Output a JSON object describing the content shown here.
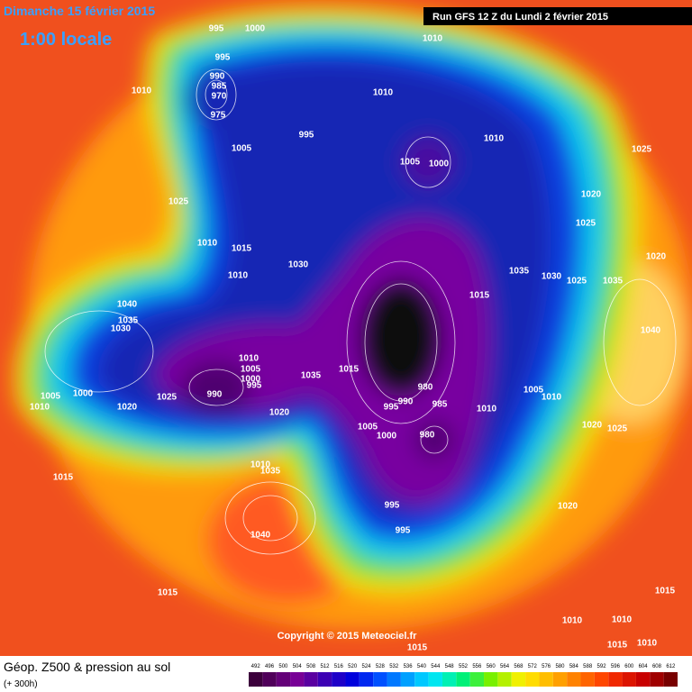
{
  "header": {
    "date": "Dimanche 15 février 2015",
    "time": "1:00 locale",
    "run": "Run GFS 12 Z du Lundi 2 février 2015"
  },
  "map": {
    "copyright": "Copyright © 2015 Meteociel.fr",
    "isobar_labels": [
      995,
      1000,
      1010,
      995,
      990,
      985,
      970,
      975,
      1010,
      1010,
      1010,
      995,
      1005,
      1005,
      1000,
      1025,
      1025,
      1020,
      1025,
      1010,
      1015,
      1030,
      1035,
      1030,
      1025,
      1035,
      1020,
      1010,
      1015,
      1040,
      1035,
      1030,
      1040,
      1010,
      1005,
      1000,
      995,
      990,
      1035,
      1015,
      980,
      1005,
      1010,
      1005,
      1000,
      1025,
      1010,
      1020,
      1020,
      995,
      990,
      985,
      1010,
      1005,
      980,
      1000,
      1020,
      1025,
      1015,
      1010,
      1035,
      995,
      1020,
      995,
      1040,
      1015,
      1015,
      1010,
      1010,
      1015,
      1010,
      1015
    ]
  },
  "footer": {
    "title": "Géop. Z500 & pression au sol",
    "subtitle": "(+ 300h)",
    "scale": {
      "values": [
        492,
        496,
        500,
        504,
        508,
        512,
        516,
        520,
        524,
        528,
        532,
        536,
        540,
        544,
        548,
        552,
        556,
        560,
        564,
        568,
        572,
        576,
        580,
        584,
        588,
        592,
        596,
        600,
        604,
        608,
        612
      ],
      "colors": [
        "#3c003c",
        "#50005a",
        "#640078",
        "#780096",
        "#5a00a0",
        "#3c00b4",
        "#1e00c8",
        "#0000dc",
        "#0028f0",
        "#0050ff",
        "#0078ff",
        "#00a0ff",
        "#00c8ff",
        "#00e6f0",
        "#00f0b4",
        "#00f078",
        "#3cf03c",
        "#78f000",
        "#b4f000",
        "#f0f000",
        "#ffdc00",
        "#ffbe00",
        "#ffa000",
        "#ff8200",
        "#ff6400",
        "#ff4600",
        "#f02800",
        "#dc1400",
        "#c80000",
        "#a00000",
        "#780000"
      ]
    }
  }
}
